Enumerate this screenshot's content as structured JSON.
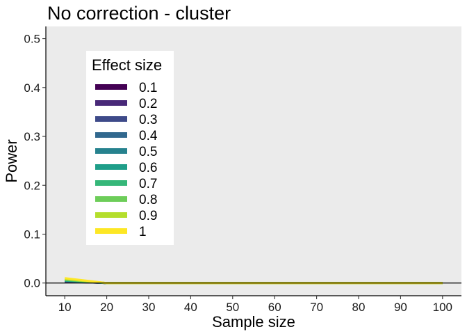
{
  "chart_data": {
    "type": "line",
    "title": "No correction - cluster",
    "xlabel": "Sample size",
    "ylabel": "Power",
    "xlim": [
      5.5,
      104.5
    ],
    "ylim": [
      -0.026,
      0.525
    ],
    "x_ticks": [
      10,
      20,
      30,
      40,
      50,
      60,
      70,
      80,
      90,
      100
    ],
    "y_ticks": [
      0.0,
      0.1,
      0.2,
      0.3,
      0.4,
      0.5
    ],
    "x_tick_labels": [
      "10",
      "20",
      "30",
      "40",
      "50",
      "60",
      "70",
      "80",
      "90",
      "100"
    ],
    "y_tick_labels": [
      "0.0",
      "0.1",
      "0.2",
      "0.3",
      "0.4",
      "0.5"
    ],
    "legend": {
      "title": "Effect size",
      "position": "top-left"
    },
    "grid": false,
    "reference_line_y": 0,
    "x": [
      10,
      20,
      30,
      40,
      50,
      60,
      70,
      80,
      90,
      100
    ],
    "series": [
      {
        "name": "0.1",
        "color": "#440154",
        "values": [
          0.003,
          0,
          0,
          0,
          0,
          0,
          0,
          0,
          0,
          0
        ]
      },
      {
        "name": "0.2",
        "color": "#482878",
        "values": [
          0.003,
          0,
          0,
          0,
          0,
          0,
          0,
          0,
          0,
          0
        ]
      },
      {
        "name": "0.3",
        "color": "#3E4A89",
        "values": [
          0.004,
          0,
          0,
          0,
          0,
          0,
          0,
          0,
          0,
          0
        ]
      },
      {
        "name": "0.4",
        "color": "#31688E",
        "values": [
          0.004,
          0,
          0,
          0,
          0,
          0,
          0,
          0,
          0,
          0
        ]
      },
      {
        "name": "0.5",
        "color": "#26828E",
        "values": [
          0.005,
          0,
          0,
          0,
          0,
          0,
          0,
          0,
          0,
          0
        ]
      },
      {
        "name": "0.6",
        "color": "#1F9E89",
        "values": [
          0.005,
          0,
          0,
          0,
          0,
          0,
          0,
          0,
          0,
          0
        ]
      },
      {
        "name": "0.7",
        "color": "#35B779",
        "values": [
          0.006,
          0,
          0,
          0,
          0,
          0,
          0,
          0,
          0,
          0
        ]
      },
      {
        "name": "0.8",
        "color": "#6DCD59",
        "values": [
          0.007,
          0,
          0,
          0,
          0,
          0,
          0,
          0,
          0,
          0
        ]
      },
      {
        "name": "0.9",
        "color": "#B4DE2C",
        "values": [
          0.008,
          0,
          0,
          0,
          0,
          0,
          0,
          0,
          0,
          0
        ]
      },
      {
        "name": "1",
        "color": "#FDE725",
        "values": [
          0.01,
          0,
          0,
          0,
          0,
          0,
          0,
          0,
          0,
          0
        ]
      }
    ],
    "panel_background": "#EBEBEB"
  }
}
